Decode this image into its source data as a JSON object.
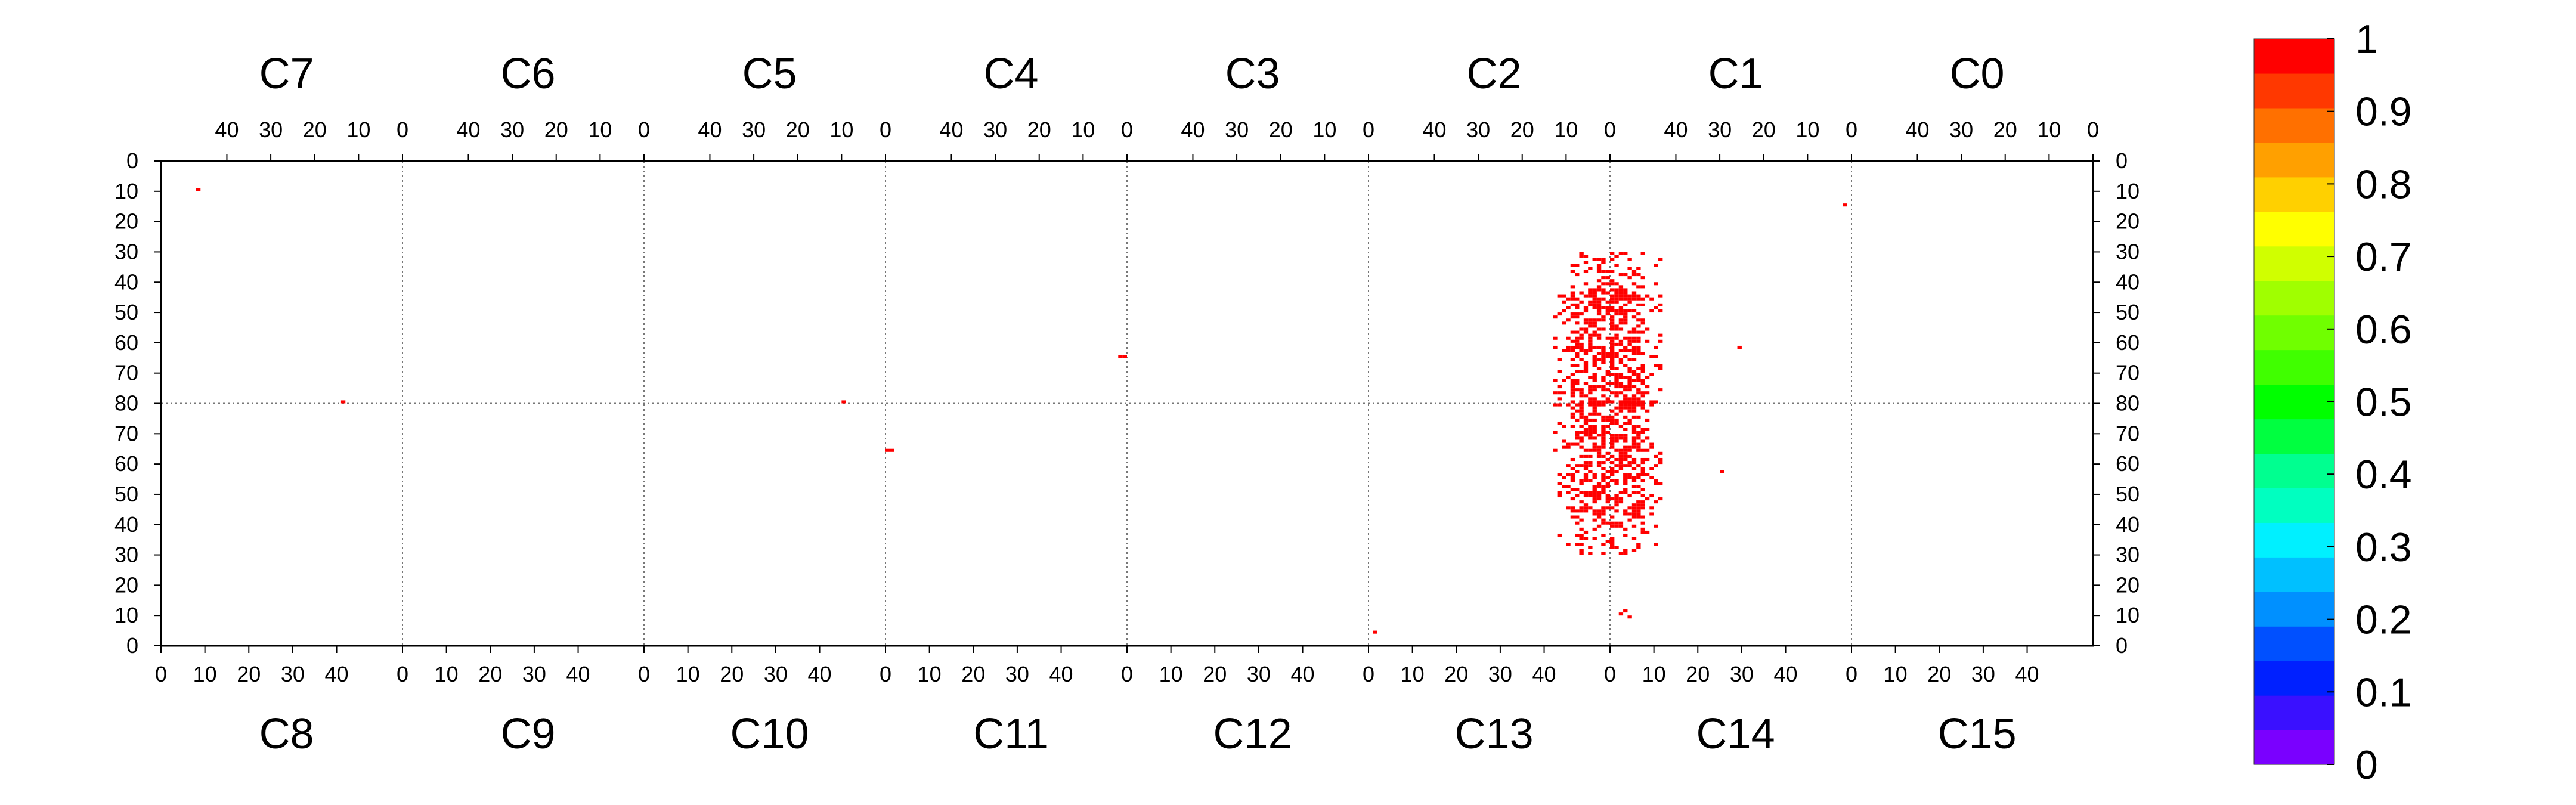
{
  "chart_data": {
    "type": "heatmap",
    "title": "",
    "chips_top": [
      "C7",
      "C6",
      "C5",
      "C4",
      "C3",
      "C2",
      "C1",
      "C0"
    ],
    "chips_bottom": [
      "C8",
      "C9",
      "C10",
      "C11",
      "C12",
      "C13",
      "C14",
      "C15"
    ],
    "x_ticks_top": [
      "40",
      "30",
      "20",
      "10",
      "0"
    ],
    "x_ticks_bottom": [
      "0",
      "10",
      "20",
      "30",
      "40"
    ],
    "y_ticks": [
      "0",
      "10",
      "20",
      "30",
      "40",
      "50",
      "60",
      "70",
      "80",
      "70",
      "60",
      "50",
      "40",
      "30",
      "20",
      "10",
      "0"
    ],
    "colorbar": {
      "range": [
        0,
        1
      ],
      "labels": [
        "0",
        "0.1",
        "0.2",
        "0.3",
        "0.4",
        "0.5",
        "0.6",
        "0.7",
        "0.8",
        "0.9",
        "1"
      ],
      "colors": [
        "#7A00FF",
        "#3A10FF",
        "#0020FF",
        "#0050FF",
        "#0090FF",
        "#00C0FF",
        "#00F0FF",
        "#00FFC0",
        "#00FF90",
        "#00FF40",
        "#00FF00",
        "#40FF00",
        "#70FF00",
        "#A0FF00",
        "#D0FF00",
        "#FFFF00",
        "#FFD000",
        "#FFA000",
        "#FF7000",
        "#FF3800",
        "#FF0000"
      ]
    },
    "hit_color": "#FF0000",
    "grid": "dotted chip boundaries",
    "hits": [
      {
        "chip": "C7",
        "col": 46,
        "row": 9,
        "value": 1
      },
      {
        "chip": "C8",
        "col": 41,
        "row": 80,
        "value": 1
      },
      {
        "chip": "C10",
        "col": 45,
        "row": 80,
        "value": 1
      },
      {
        "chip": "C4",
        "col": 1,
        "row": 64,
        "value": 1
      },
      {
        "chip": "C4",
        "col": 0,
        "row": 64,
        "value": 1
      },
      {
        "chip": "C11",
        "col": 0,
        "row": 64,
        "value": 1
      },
      {
        "chip": "C11",
        "col": 1,
        "row": 64,
        "value": 1
      },
      {
        "chip": "C1",
        "col": 1,
        "row": 14,
        "value": 1
      },
      {
        "chip": "C1",
        "col": 25,
        "row": 61,
        "value": 1
      },
      {
        "chip": "C14",
        "col": 25,
        "row": 57,
        "value": 1
      },
      {
        "chip": "C13",
        "col": 1,
        "row": 4,
        "value": 1
      },
      {
        "chip": "C14",
        "col": 3,
        "row": 11,
        "value": 1
      },
      {
        "chip": "C14",
        "col": 4,
        "row": 9,
        "value": 1
      },
      {
        "chip": "C14",
        "col": 2,
        "row": 10,
        "value": 1
      }
    ],
    "cluster": {
      "description": "dense hit region straddling C2/C1 and C13/C14",
      "chip_pairs": [
        [
          "C2",
          "C1"
        ],
        [
          "C13",
          "C14"
        ]
      ],
      "x_span": [
        -13,
        11
      ],
      "rows": [
        30,
        80
      ],
      "value": 1
    }
  }
}
